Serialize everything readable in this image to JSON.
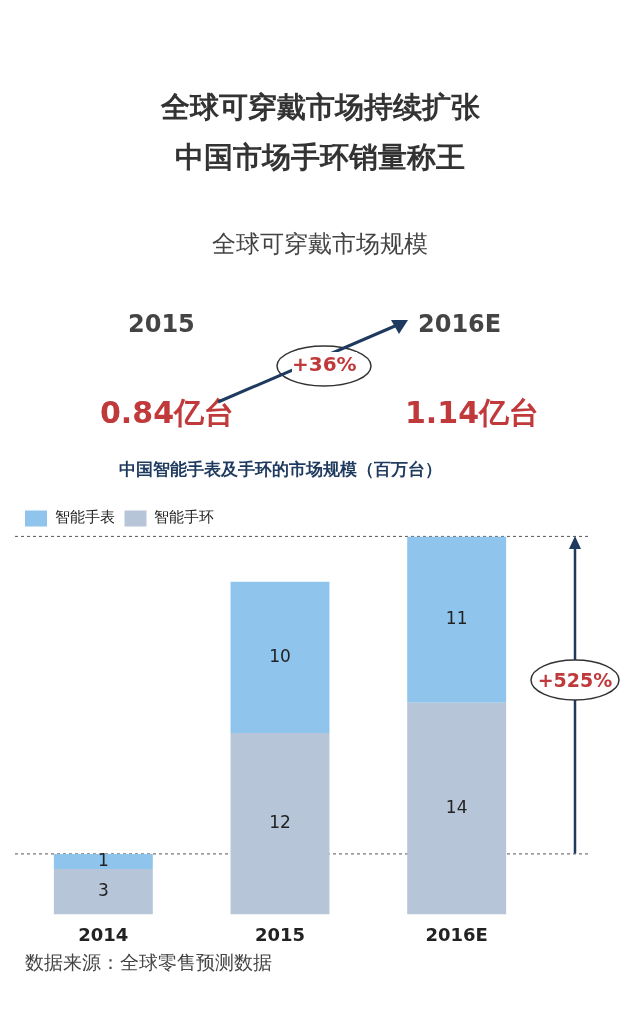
{
  "chart_data": [
    {
      "type": "other",
      "title": "全球可穿戴市场持续扩张",
      "subtitle": "中国市场手环销量称王",
      "annotations": [
        "全球可穿戴市场规模",
        "2015",
        "0.84亿台",
        "+36%",
        "2016E",
        "1.14亿台"
      ]
    },
    {
      "type": "bar",
      "title": "中国智能手表及手环的市场规模（百万台）",
      "categories": [
        "2014",
        "2015",
        "2016E"
      ],
      "stacked": true,
      "data_labels": true,
      "legend": "top left",
      "series": [
        {
          "name": "智能手环",
          "color": "#b7c5d9",
          "values": [
            3,
            12,
            14
          ]
        },
        {
          "name": "智能手表",
          "color": "#8fc5ec",
          "values": [
            1,
            10,
            11
          ]
        }
      ],
      "ref_lines": [
        {
          "axis": "y",
          "value": 4,
          "line_style": "dashed",
          "color": "#555555"
        },
        {
          "axis": "y",
          "value": 25,
          "line_style": "dashed",
          "color": "#555555"
        }
      ],
      "annotations": [
        "+525%",
        "数据来源：全球零售预测数据"
      ]
    }
  ]
}
